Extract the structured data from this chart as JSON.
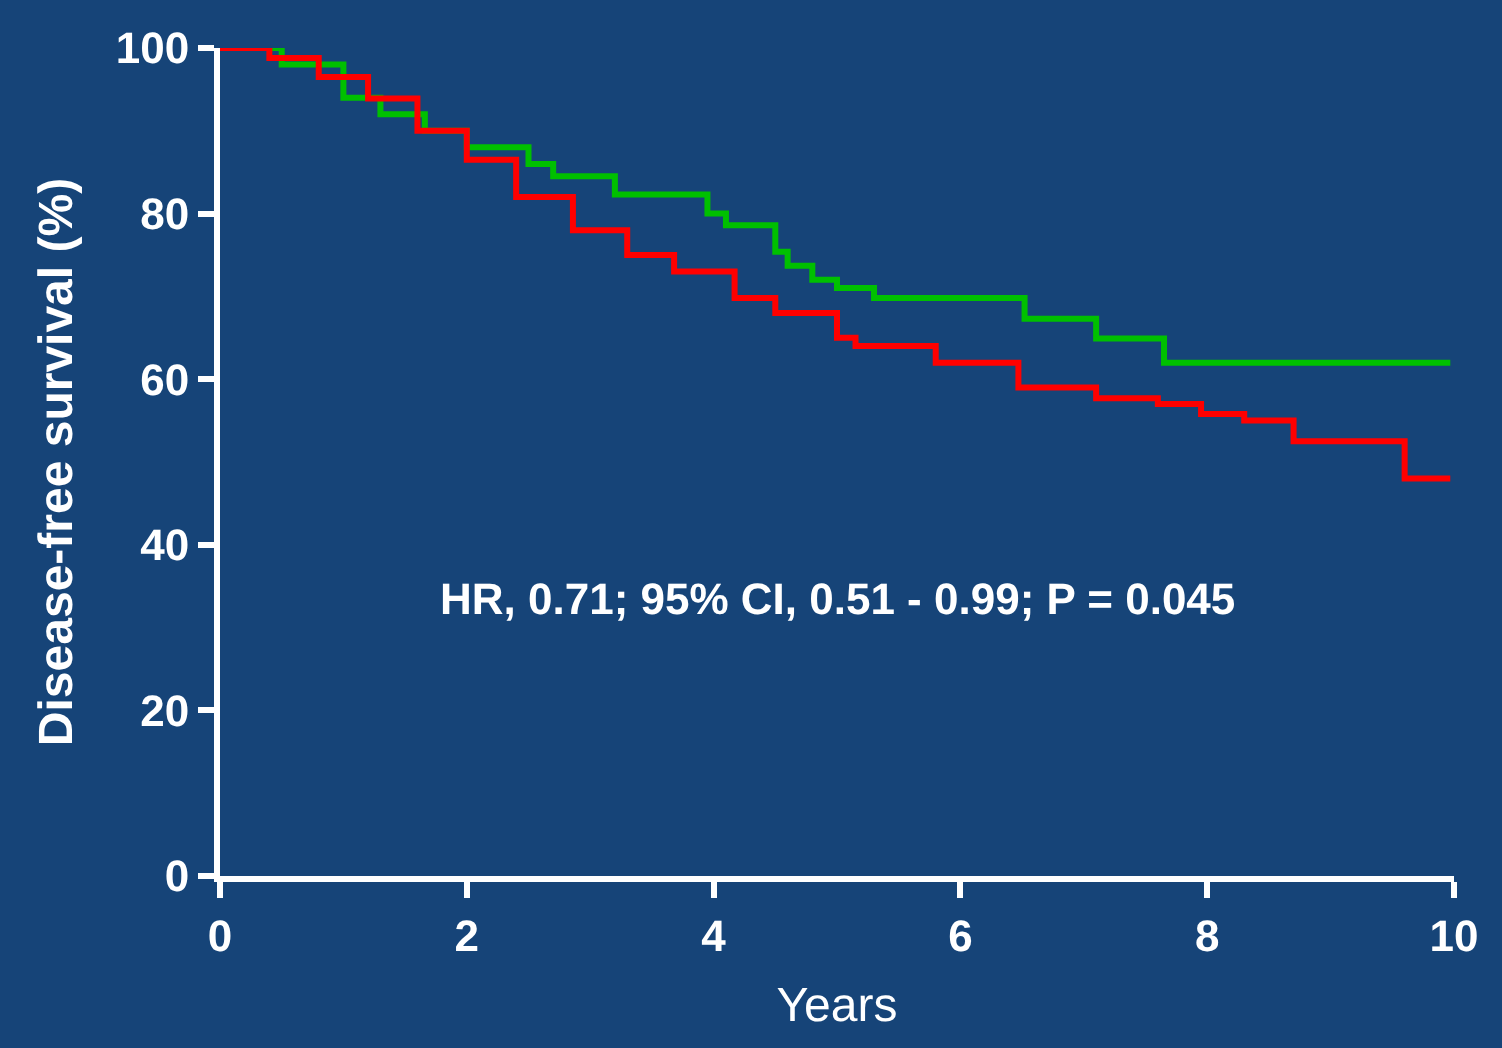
{
  "chart_data": {
    "type": "step",
    "xlabel": "Years",
    "ylabel": "Disease-free survival (%)",
    "xlim": [
      0,
      10
    ],
    "xticks": [
      0,
      2,
      4,
      6,
      8,
      10
    ],
    "ylim": [
      0,
      100
    ],
    "yticks": [
      0,
      20,
      40,
      60,
      80,
      100
    ],
    "grid": false,
    "annotations": [
      "HR, 0.71; 95% CI, 0.51 - 0.99; P = 0.045"
    ],
    "series": [
      {
        "color": "#00c000",
        "x": [
          0,
          0.5,
          1.0,
          1.3,
          1.66,
          2.0,
          2.5,
          2.7,
          3.2,
          3.95,
          4.1,
          4.5,
          4.6,
          4.8,
          5.0,
          5.3,
          6.52,
          7.1,
          7.65,
          9.97
        ],
        "values": [
          100,
          98,
          94,
          92,
          90,
          88,
          86,
          84.5,
          82.3,
          80,
          78.6,
          75.4,
          73.7,
          72,
          71,
          69.8,
          67.3,
          64.9,
          62,
          62
        ]
      },
      {
        "color": "#ff0000",
        "x": [
          0,
          0.4,
          0.8,
          1.2,
          1.6,
          2.0,
          2.4,
          2.86,
          3.3,
          3.68,
          4.17,
          4.5,
          5.0,
          5.15,
          5.8,
          6.47,
          7.1,
          7.6,
          7.95,
          8.3,
          8.7,
          9.6,
          9.97
        ],
        "values": [
          100,
          98.8,
          96.5,
          93.9,
          90,
          86.5,
          82,
          78,
          75,
          73,
          69.8,
          68,
          65,
          64,
          62,
          59,
          57.7,
          57,
          55.8,
          55,
          52.5,
          48,
          48
        ]
      }
    ]
  }
}
